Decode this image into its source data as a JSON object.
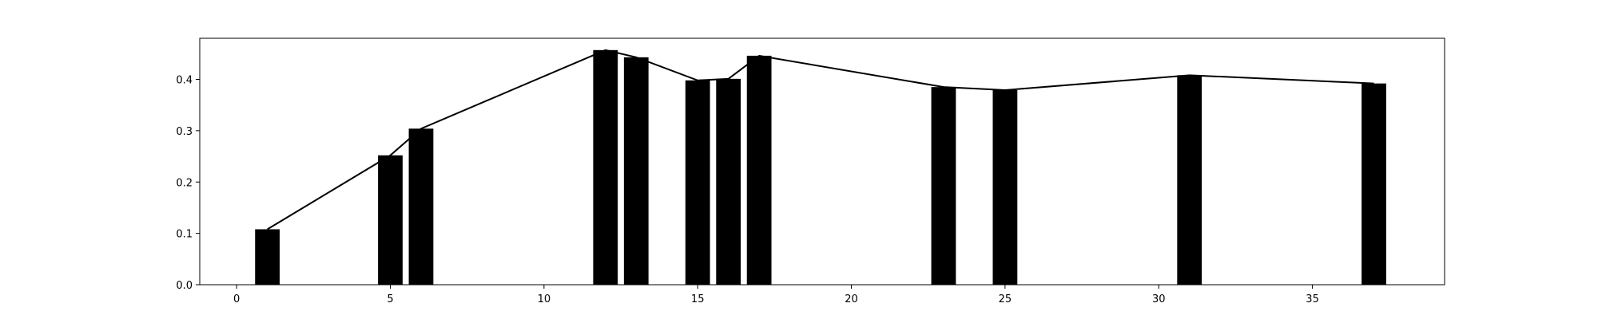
{
  "chart_data": {
    "type": "bar",
    "title": "",
    "xlabel": "",
    "ylabel": "",
    "xlim": [
      -1.2,
      39.3
    ],
    "ylim": [
      0,
      0.48
    ],
    "grid": false,
    "bar_width": 0.8,
    "colors": {
      "bar": "#000000",
      "line": "#000000",
      "frame": "#000000"
    },
    "x_ticks": [
      0,
      5,
      10,
      15,
      20,
      25,
      30,
      35
    ],
    "y_ticks": [
      0.0,
      0.1,
      0.2,
      0.3,
      0.4
    ],
    "x_tick_labels": [
      "0",
      "5",
      "10",
      "15",
      "20",
      "25",
      "30",
      "35"
    ],
    "y_tick_labels": [
      "0.0",
      "0.1",
      "0.2",
      "0.3",
      "0.4"
    ],
    "series": [
      {
        "type": "bar",
        "x": [
          1,
          5,
          6,
          12,
          13,
          15,
          16,
          17,
          23,
          25,
          31,
          37
        ],
        "values": [
          0.108,
          0.252,
          0.304,
          0.457,
          0.443,
          0.398,
          0.401,
          0.446,
          0.385,
          0.379,
          0.408,
          0.392
        ]
      },
      {
        "type": "line",
        "x": [
          1,
          5,
          6,
          12,
          13,
          15,
          16,
          17,
          23,
          25,
          31,
          37
        ],
        "values": [
          0.108,
          0.252,
          0.304,
          0.457,
          0.443,
          0.398,
          0.401,
          0.446,
          0.385,
          0.379,
          0.408,
          0.392
        ]
      }
    ]
  }
}
